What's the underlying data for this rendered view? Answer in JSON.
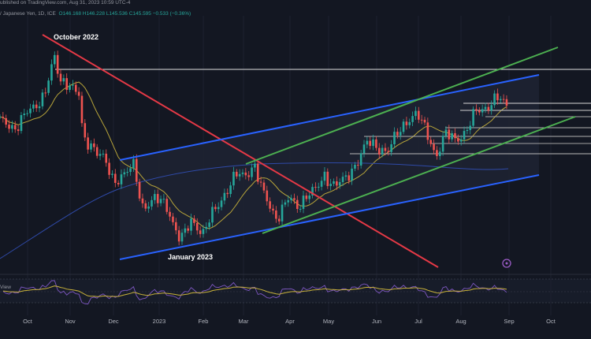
{
  "header": {
    "published": "ublished on TradingView.com, Aug 31, 2023 10:59 UTC-4",
    "symbol": "/ Japanese Yen, 1D, ICE",
    "ohlc": "O146.168  H146.228  L145.536  C145.595  −0.533 (−0.36%)"
  },
  "panel_label": "View",
  "colors": {
    "background": "#131722",
    "up": "#26a69a",
    "down": "#ef5350",
    "channel": "#2962ff",
    "green_channel": "#4caf50",
    "red_trend": "#e53946",
    "ma_short": "#b8a53a",
    "ma_long": "#2f4aa8",
    "rsi_line": "#7e57c2",
    "rsi_ma": "#c8b13a",
    "horizontal": "#ffffff",
    "axis_text": "#b2b5be"
  },
  "chart_data": {
    "type": "line",
    "title": "",
    "x_axis": {
      "ticks": [
        "Oct",
        "Nov",
        "Dec",
        "2023",
        "Feb",
        "Mar",
        "Apr",
        "May",
        "Jun",
        "Jul",
        "Aug",
        "Sep",
        "Oct"
      ],
      "range": [
        "2022-09-01",
        "2023-10-25"
      ]
    },
    "y_axis": {
      "ticks_visible": false
    },
    "annotations": [
      "October 2022",
      "January 2023"
    ],
    "series": [
      {
        "type": "candlestick",
        "points": [
          [
            "2022-09-01",
            138.5
          ],
          [
            "2022-09-08",
            143.8
          ],
          [
            "2022-09-15",
            143.0
          ],
          [
            "2022-09-22",
            142.6
          ],
          [
            "2022-09-29",
            144.3
          ],
          [
            "2022-10-06",
            145.2
          ],
          [
            "2022-10-13",
            147.1
          ],
          [
            "2022-10-21",
            151.9
          ],
          [
            "2022-10-24",
            148.8
          ],
          [
            "2022-10-31",
            148.6
          ],
          [
            "2022-11-07",
            146.9
          ],
          [
            "2022-11-10",
            140.9
          ],
          [
            "2022-11-17",
            140.2
          ],
          [
            "2022-11-24",
            138.5
          ],
          [
            "2022-12-01",
            135.3
          ],
          [
            "2022-12-08",
            136.6
          ],
          [
            "2022-12-15",
            137.4
          ],
          [
            "2022-12-20",
            132.1
          ],
          [
            "2022-12-29",
            133.1
          ],
          [
            "2023-01-06",
            132.3
          ],
          [
            "2023-01-16",
            127.5
          ],
          [
            "2023-01-24",
            130.3
          ],
          [
            "2023-02-01",
            128.6
          ],
          [
            "2023-02-08",
            131.3
          ],
          [
            "2023-02-17",
            134.2
          ],
          [
            "2023-02-24",
            136.3
          ],
          [
            "2023-03-02",
            136.2
          ],
          [
            "2023-03-08",
            137.8
          ],
          [
            "2023-03-14",
            133.8
          ],
          [
            "2023-03-23",
            130.6
          ],
          [
            "2023-03-31",
            133.1
          ],
          [
            "2023-04-07",
            132.1
          ],
          [
            "2023-04-14",
            133.7
          ],
          [
            "2023-04-21",
            134.2
          ],
          [
            "2023-04-28",
            136.3
          ],
          [
            "2023-05-05",
            134.9
          ],
          [
            "2023-05-12",
            135.7
          ],
          [
            "2023-05-19",
            138.0
          ],
          [
            "2023-05-26",
            140.6
          ],
          [
            "2023-06-02",
            140.0
          ],
          [
            "2023-06-09",
            139.4
          ],
          [
            "2023-06-16",
            141.8
          ],
          [
            "2023-06-23",
            143.7
          ],
          [
            "2023-06-30",
            144.3
          ],
          [
            "2023-07-07",
            142.1
          ],
          [
            "2023-07-14",
            138.8
          ],
          [
            "2023-07-21",
            141.7
          ],
          [
            "2023-07-28",
            141.2
          ],
          [
            "2023-08-04",
            141.8
          ],
          [
            "2023-08-11",
            144.9
          ],
          [
            "2023-08-18",
            145.4
          ],
          [
            "2023-08-25",
            146.5
          ],
          [
            "2023-08-29",
            145.8
          ],
          [
            "2023-08-31",
            145.6
          ]
        ]
      },
      {
        "name": "",
        "type": "moving-average-short"
      },
      {
        "name": "",
        "type": "moving-average-long"
      },
      {
        "name": "",
        "type": "rsi-oscillator"
      }
    ]
  }
}
